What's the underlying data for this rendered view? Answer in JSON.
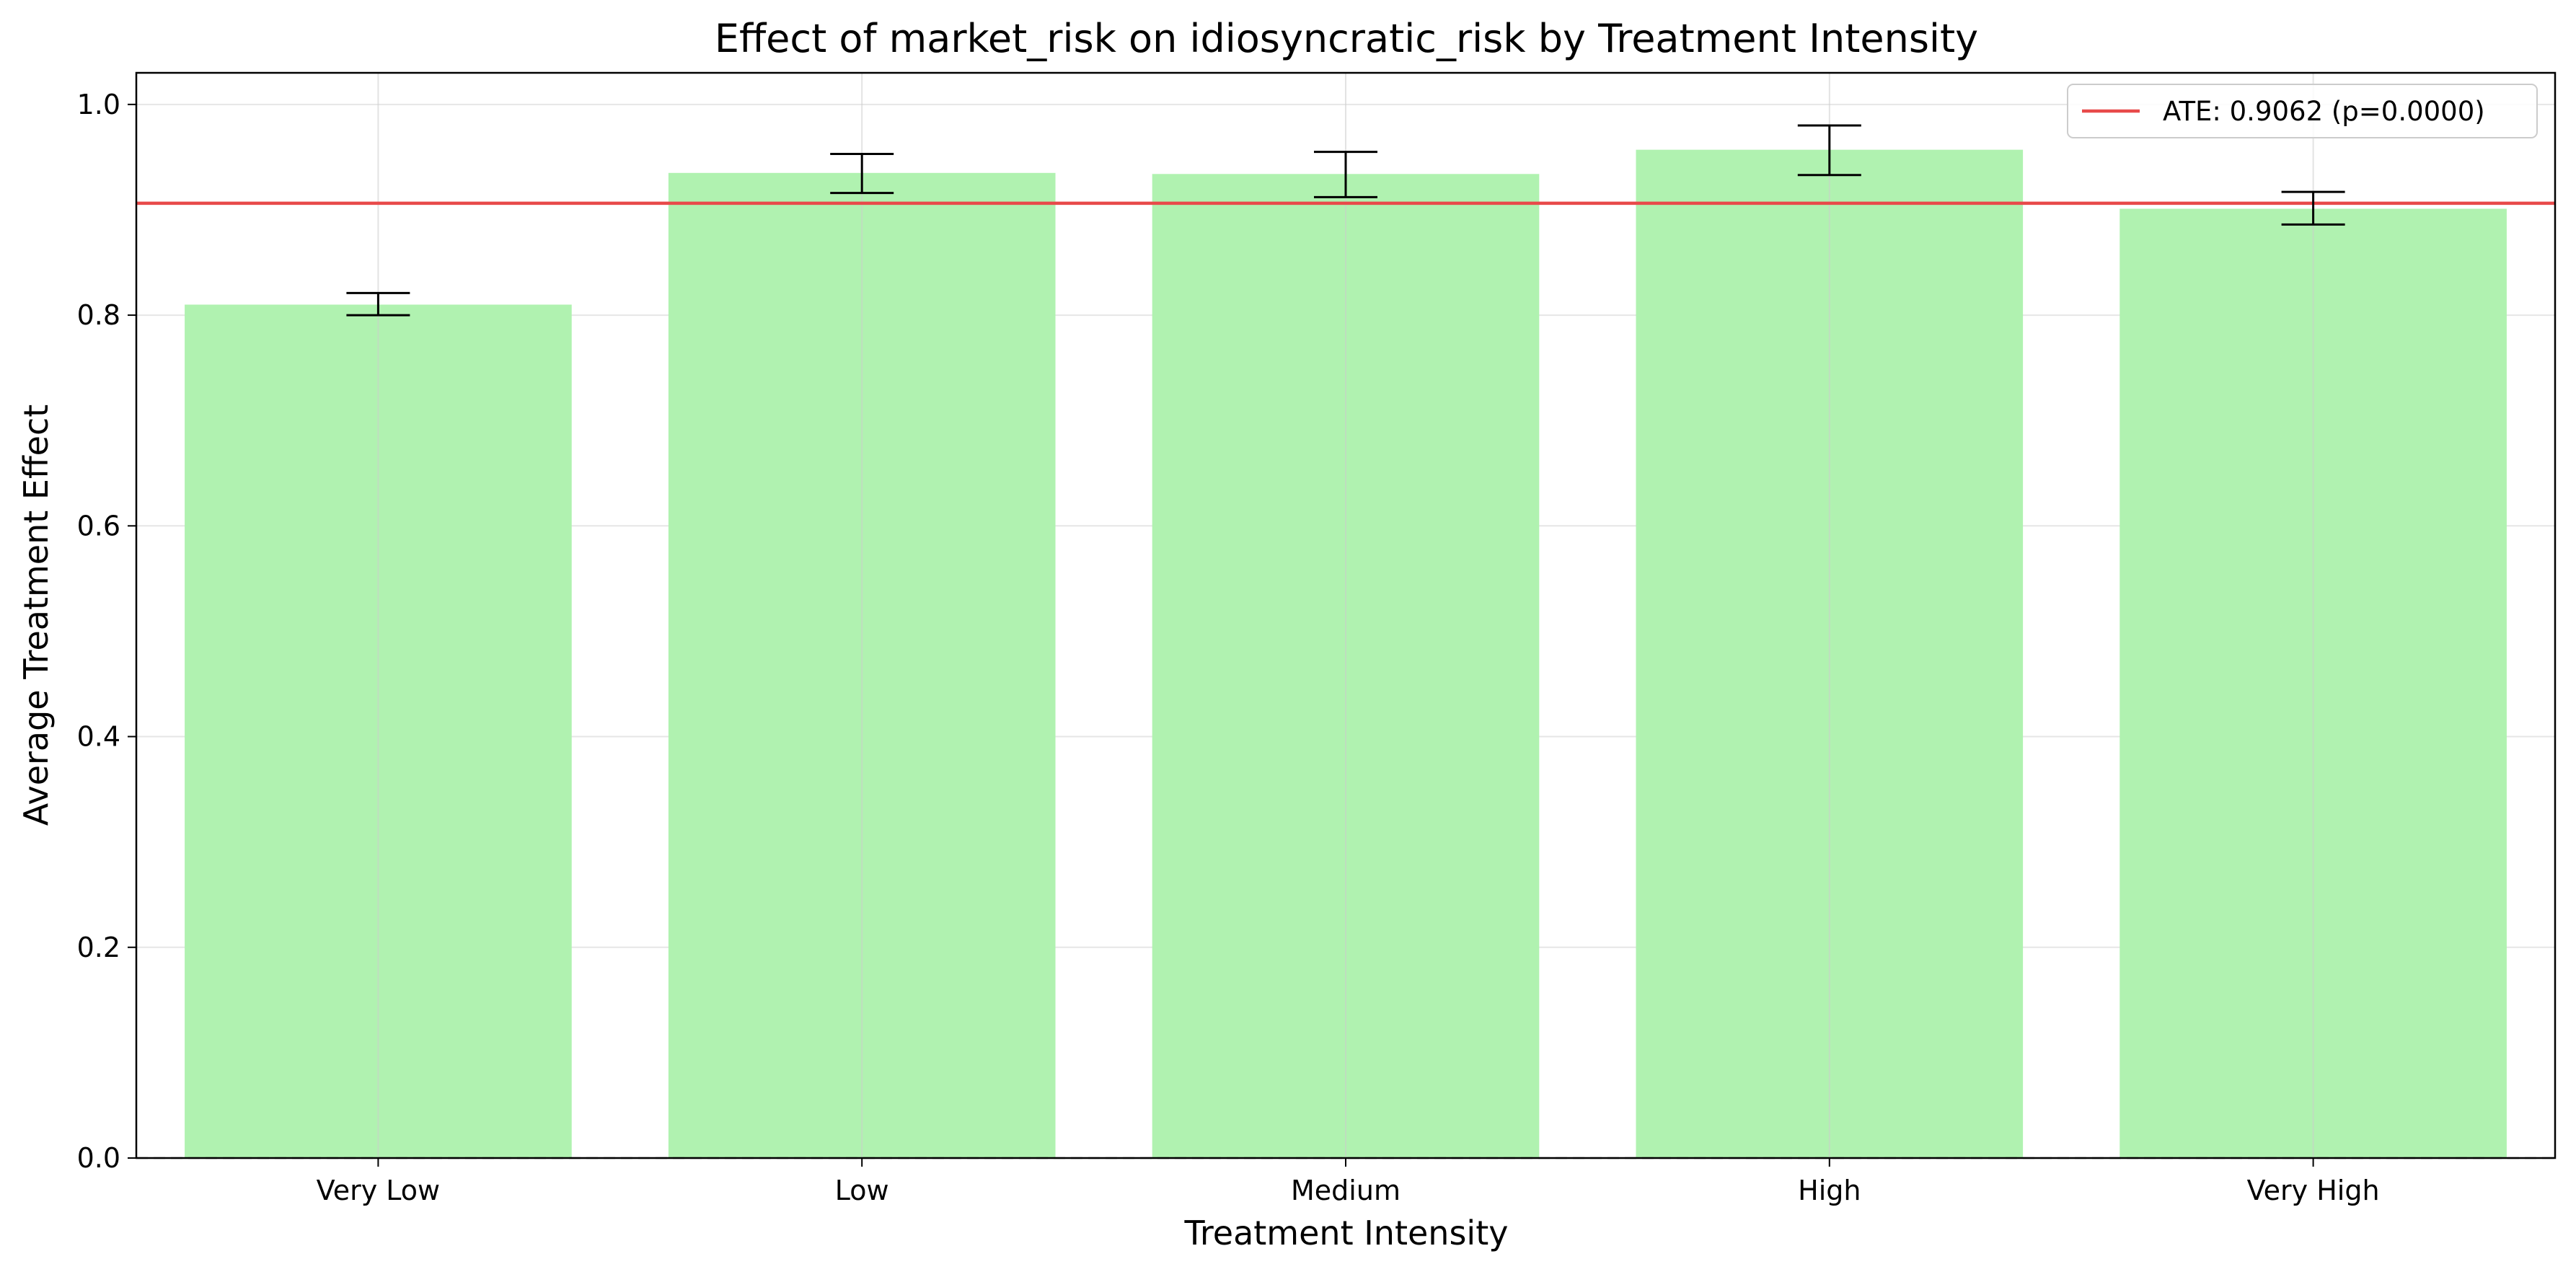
{
  "chart_data": {
    "type": "bar",
    "title": "Effect of market_risk on idiosyncratic_risk by Treatment Intensity",
    "xlabel": "Treatment Intensity",
    "ylabel": "Average Treatment Effect",
    "categories": [
      "Very Low",
      "Low",
      "Medium",
      "High",
      "Very High"
    ],
    "values": [
      0.81,
      0.935,
      0.934,
      0.957,
      0.901
    ],
    "error_low": [
      0.8,
      0.916,
      0.912,
      0.933,
      0.886
    ],
    "error_high": [
      0.821,
      0.953,
      0.955,
      0.98,
      0.917
    ],
    "ylim": [
      0,
      1.03
    ],
    "yticks": [
      0.0,
      0.2,
      0.4,
      0.6,
      0.8,
      1.0
    ],
    "ytick_labels": [
      "0.0",
      "0.2",
      "0.4",
      "0.6",
      "0.8",
      "1.0"
    ],
    "reference_line": {
      "value": 0.9062,
      "label": "ATE: 0.9062 (p=0.0000)"
    },
    "baseline_dashed": 0,
    "grid": true,
    "legend_position": "top-right",
    "colors": {
      "bar": "#b0f2b0",
      "ate_line": "#e84a4a",
      "error_bar": "#000000",
      "grid": "#e6e6e6"
    }
  }
}
